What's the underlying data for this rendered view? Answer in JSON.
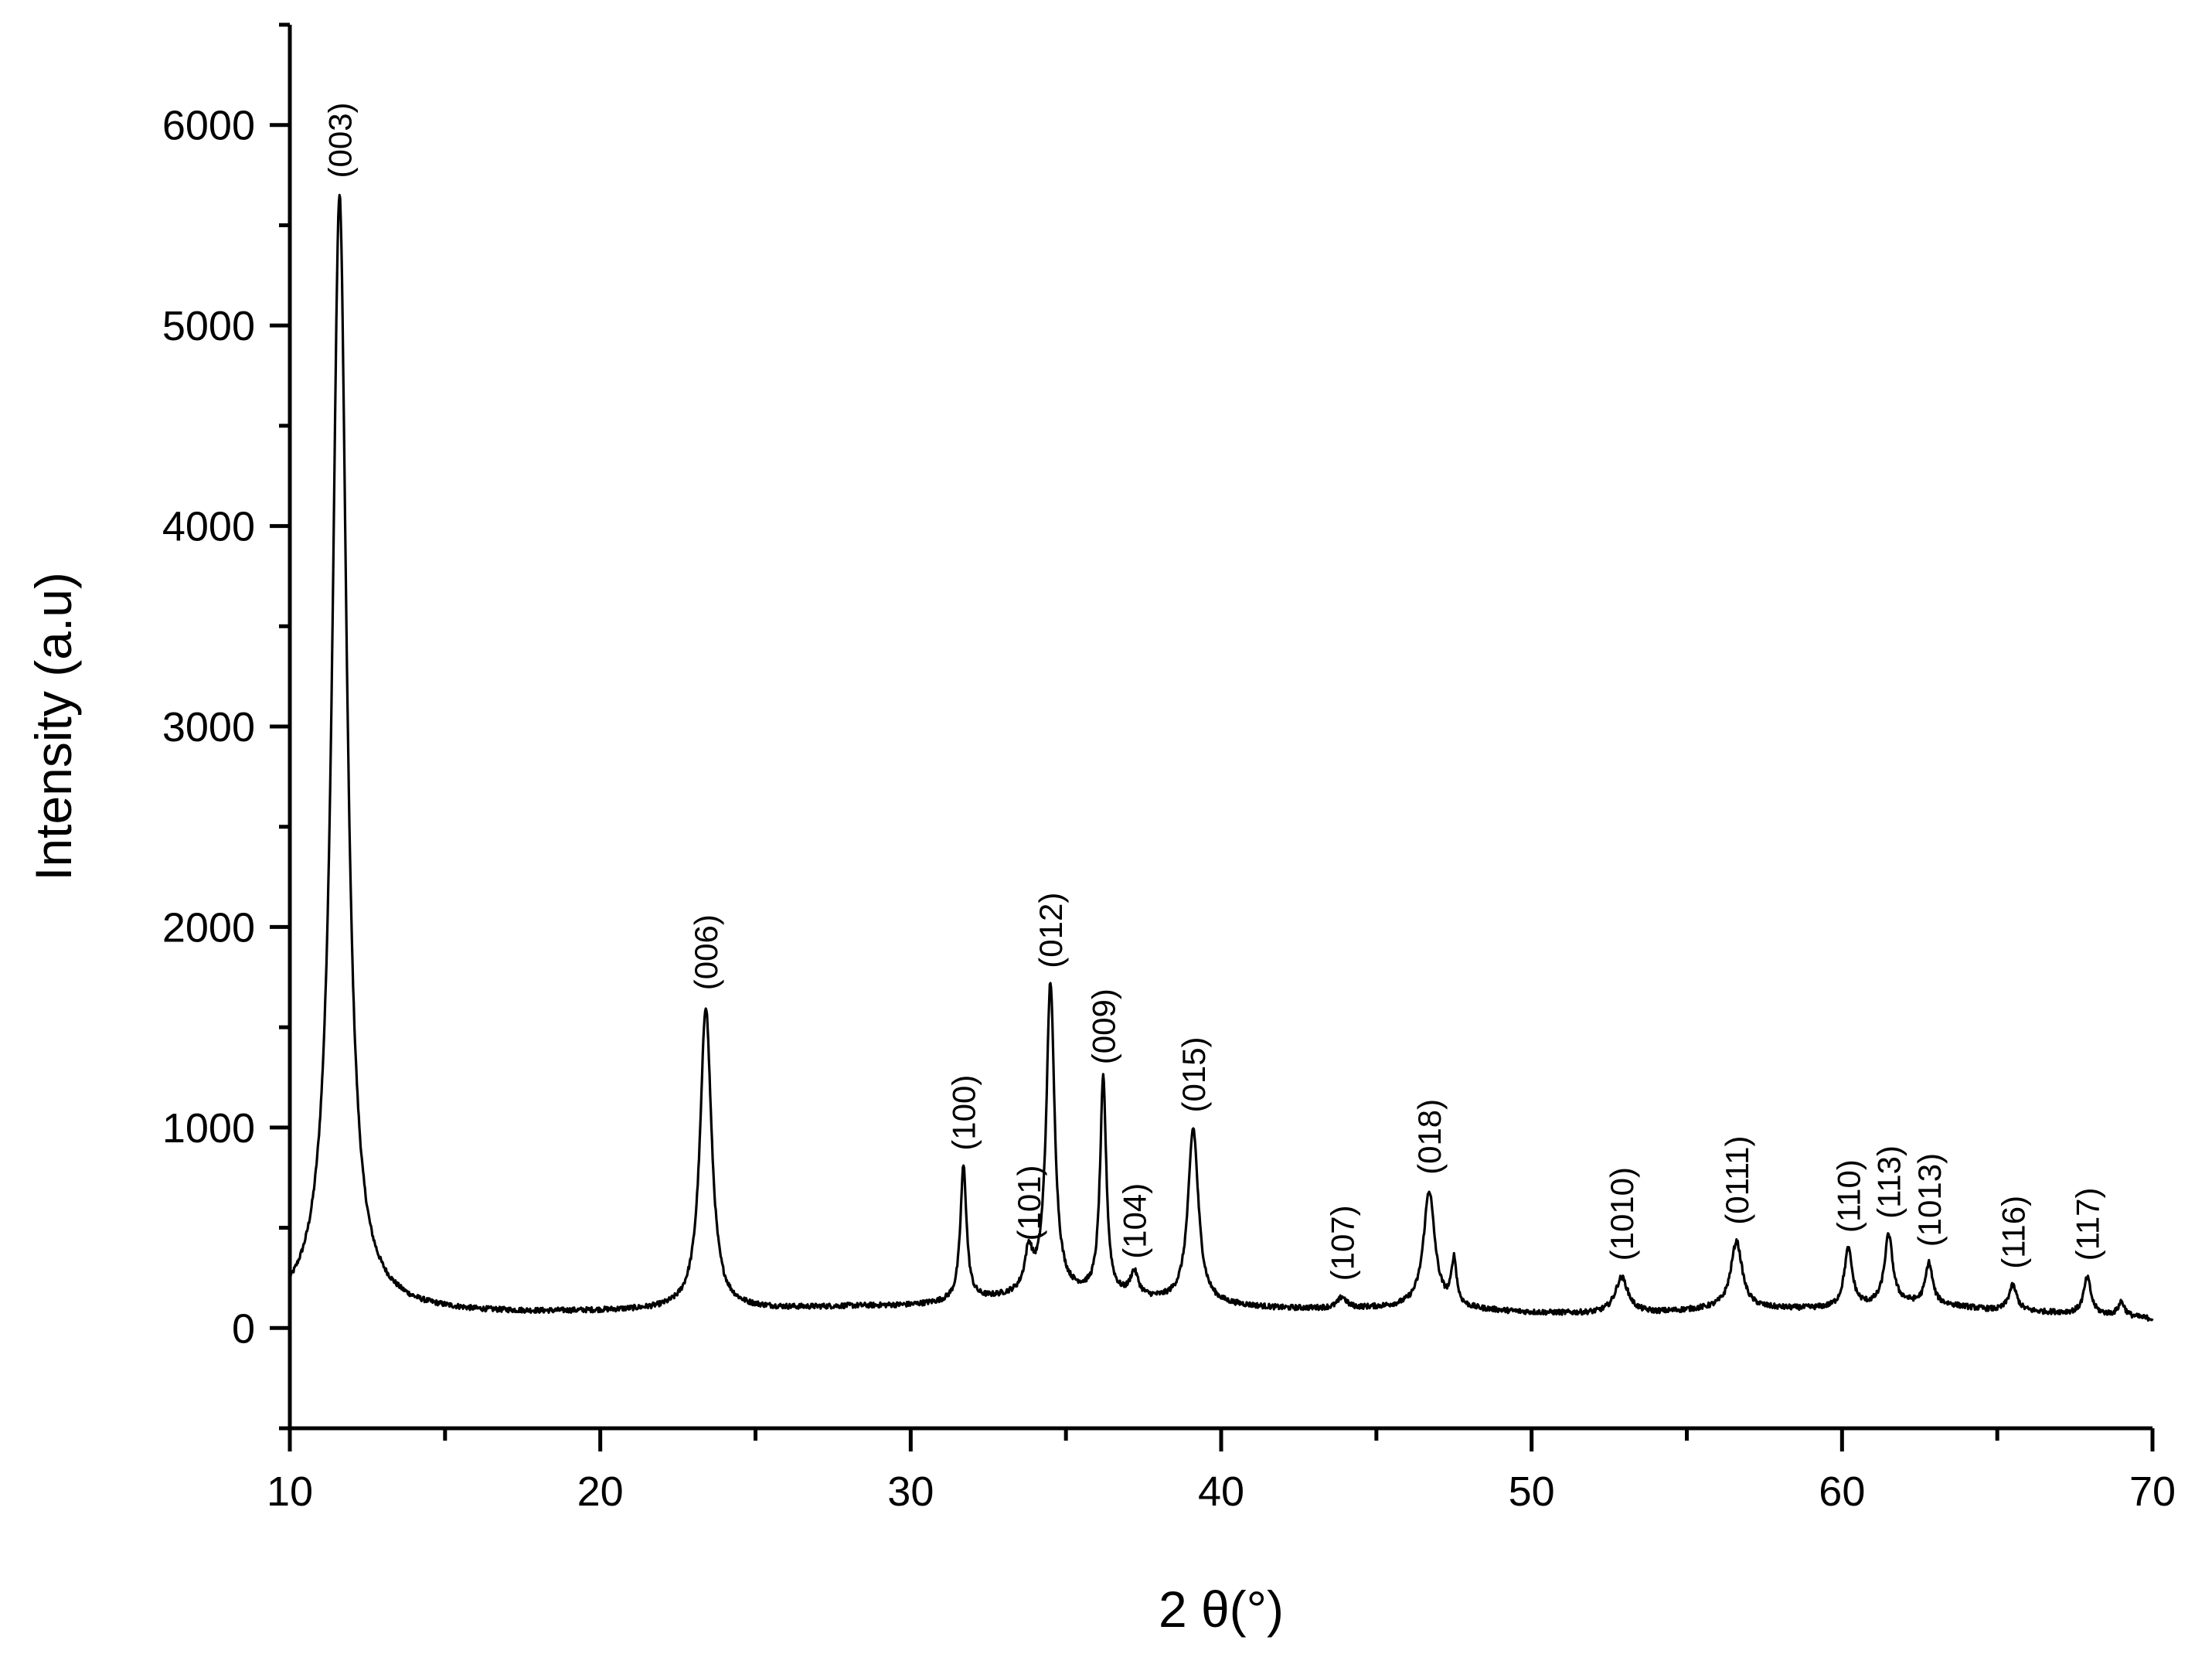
{
  "chart_data": {
    "type": "line",
    "title": "",
    "xlabel": "2 θ(°)",
    "ylabel": "Intensity (a.u)",
    "xlim": [
      10,
      70
    ],
    "ylim": [
      -500,
      6500
    ],
    "x_ticks": [
      10,
      20,
      30,
      40,
      50,
      60,
      70
    ],
    "x_tick_labels": [
      "10",
      "20",
      "30",
      "40",
      "50",
      "60",
      "70"
    ],
    "x_minor_ticks": [
      15,
      25,
      35,
      45,
      55,
      65
    ],
    "y_ticks": [
      0,
      1000,
      2000,
      3000,
      4000,
      5000,
      6000
    ],
    "y_tick_labels": [
      "0",
      "1000",
      "2000",
      "3000",
      "4000",
      "5000",
      "6000"
    ],
    "y_minor_ticks": [
      -500,
      500,
      1500,
      2500,
      3500,
      4500,
      5500,
      6500
    ],
    "grid": false,
    "legend": "none",
    "line_color": "#000000",
    "background": [
      [
        10.0,
        90
      ],
      [
        11.0,
        130
      ],
      [
        12.5,
        110
      ],
      [
        14,
        85
      ],
      [
        16,
        75
      ],
      [
        18,
        75
      ],
      [
        20,
        80
      ],
      [
        22,
        85
      ],
      [
        26,
        95
      ],
      [
        28,
        105
      ],
      [
        30,
        110
      ],
      [
        31,
        120
      ],
      [
        32.5,
        140
      ],
      [
        34,
        160
      ],
      [
        35.5,
        160
      ],
      [
        37,
        140
      ],
      [
        38,
        130
      ],
      [
        40,
        110
      ],
      [
        42,
        95
      ],
      [
        44,
        95
      ],
      [
        46,
        100
      ],
      [
        48,
        90
      ],
      [
        50,
        75
      ],
      [
        52,
        70
      ],
      [
        54,
        75
      ],
      [
        56,
        95
      ],
      [
        58,
        95
      ],
      [
        60,
        95
      ],
      [
        62,
        120
      ],
      [
        63.5,
        110
      ],
      [
        65,
        85
      ],
      [
        67,
        75
      ],
      [
        69,
        60
      ],
      [
        70,
        45
      ]
    ],
    "peaks": [
      {
        "label": "(003)",
        "x": 11.6,
        "y": 5650,
        "width": 0.28
      },
      {
        "label": "(006)",
        "x": 23.4,
        "y": 1600,
        "width": 0.22
      },
      {
        "label": "(100)",
        "x": 31.7,
        "y": 800,
        "width": 0.12
      },
      {
        "label": "(101)",
        "x": 33.8,
        "y": 350,
        "width": 0.15
      },
      {
        "label": "(012)",
        "x": 34.5,
        "y": 1710,
        "width": 0.16
      },
      {
        "label": "(009)",
        "x": 36.2,
        "y": 1230,
        "width": 0.12
      },
      {
        "label": "(104)",
        "x": 37.2,
        "y": 260,
        "width": 0.16
      },
      {
        "label": "(015)",
        "x": 39.1,
        "y": 990,
        "width": 0.2
      },
      {
        "label": "(107)",
        "x": 43.9,
        "y": 150,
        "width": 0.16
      },
      {
        "label": "(018)",
        "x": 46.7,
        "y": 680,
        "width": 0.22
      },
      {
        "label": "",
        "x": 47.5,
        "y": 320,
        "width": 0.1
      },
      {
        "label": "(1010)",
        "x": 52.9,
        "y": 250,
        "width": 0.25
      },
      {
        "label": "(0111)",
        "x": 56.6,
        "y": 430,
        "width": 0.22
      },
      {
        "label": "(110)",
        "x": 60.2,
        "y": 390,
        "width": 0.16
      },
      {
        "label": "(113)",
        "x": 61.5,
        "y": 460,
        "width": 0.16
      },
      {
        "label": "(1013)",
        "x": 62.8,
        "y": 320,
        "width": 0.14
      },
      {
        "label": "(116)",
        "x": 65.5,
        "y": 210,
        "width": 0.16
      },
      {
        "label": "(117)",
        "x": 67.9,
        "y": 250,
        "width": 0.14
      },
      {
        "label": "",
        "x": 69.0,
        "y": 130,
        "width": 0.12
      }
    ]
  }
}
